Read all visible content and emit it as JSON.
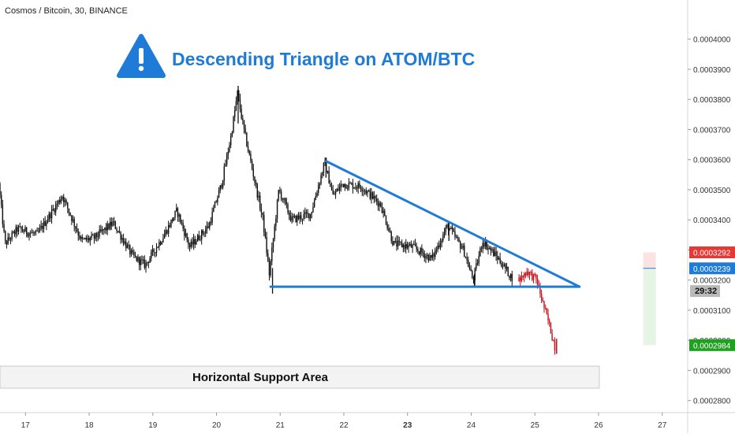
{
  "header": {
    "symbol_title": "Cosmos / Bitcoin, 30, BINANCE"
  },
  "chart_title": "Descending Triangle on ATOM/BTC",
  "support_label": "Horizontal Support Area",
  "countdown": "29:32",
  "colors": {
    "accent": "#1e7bd7",
    "candle": "#111111",
    "projection": "#c0131b",
    "stop": "#e53935",
    "target": "#20a020",
    "entry": "#1e7bd7"
  },
  "icons": {
    "title_icon": "warning-icon"
  },
  "chart_data": {
    "type": "candlestick",
    "title": "Descending Triangle on ATOM/BTC",
    "x_ticks": [
      "17",
      "18",
      "19",
      "20",
      "21",
      "22",
      "23",
      "24",
      "25",
      "26",
      "27"
    ],
    "x_range_days": [
      16.6,
      27.4
    ],
    "y_ticks": [
      "0.0002800",
      "0.0002900",
      "0.0003000",
      "0.0003100",
      "0.0003200",
      "0.0003300",
      "0.0003400",
      "0.0003500",
      "0.0003600",
      "0.0003700",
      "0.0003800",
      "0.0003900",
      "0.0004000"
    ],
    "ylim": [
      0.000276,
      0.000413
    ],
    "grid": false,
    "price_labels": [
      {
        "name": "stop",
        "value": 0.0003292,
        "text": "0.0003292"
      },
      {
        "name": "entry",
        "value": 0.0003239,
        "text": "0.0003239"
      },
      {
        "name": "target",
        "value": 0.0002984,
        "text": "0.0002984"
      }
    ],
    "key_points": [
      {
        "day": 16.6,
        "price": 0.000352
      },
      {
        "day": 16.7,
        "price": 0.000332
      },
      {
        "day": 16.9,
        "price": 0.000337
      },
      {
        "day": 17.2,
        "price": 0.000335
      },
      {
        "day": 17.6,
        "price": 0.000348
      },
      {
        "day": 17.9,
        "price": 0.000333
      },
      {
        "day": 18.1,
        "price": 0.000334
      },
      {
        "day": 18.4,
        "price": 0.000339
      },
      {
        "day": 18.7,
        "price": 0.000328
      },
      {
        "day": 18.9,
        "price": 0.000325
      },
      {
        "day": 19.2,
        "price": 0.000335
      },
      {
        "day": 19.4,
        "price": 0.000343
      },
      {
        "day": 19.6,
        "price": 0.000331
      },
      {
        "day": 19.9,
        "price": 0.000338
      },
      {
        "day": 20.1,
        "price": 0.000352
      },
      {
        "day": 20.25,
        "price": 0.000368
      },
      {
        "day": 20.35,
        "price": 0.000382
      },
      {
        "day": 20.45,
        "price": 0.00037
      },
      {
        "day": 20.6,
        "price": 0.000355
      },
      {
        "day": 20.75,
        "price": 0.00034
      },
      {
        "day": 20.85,
        "price": 0.000322
      },
      {
        "day": 21.0,
        "price": 0.00035
      },
      {
        "day": 21.2,
        "price": 0.00034
      },
      {
        "day": 21.5,
        "price": 0.000342
      },
      {
        "day": 21.72,
        "price": 0.000359
      },
      {
        "day": 21.85,
        "price": 0.000348
      },
      {
        "day": 22.0,
        "price": 0.000352
      },
      {
        "day": 22.3,
        "price": 0.000351
      },
      {
        "day": 22.6,
        "price": 0.000345
      },
      {
        "day": 22.8,
        "price": 0.000332
      },
      {
        "day": 23.1,
        "price": 0.000331
      },
      {
        "day": 23.4,
        "price": 0.000327
      },
      {
        "day": 23.65,
        "price": 0.000338
      },
      {
        "day": 23.9,
        "price": 0.00033
      },
      {
        "day": 24.05,
        "price": 0.00032
      },
      {
        "day": 24.2,
        "price": 0.000333
      },
      {
        "day": 24.45,
        "price": 0.000327
      },
      {
        "day": 24.65,
        "price": 0.000321
      }
    ],
    "projection_points": [
      {
        "day": 24.75,
        "price": 0.0003195
      },
      {
        "day": 24.9,
        "price": 0.000323
      },
      {
        "day": 25.05,
        "price": 0.00032
      },
      {
        "day": 25.15,
        "price": 0.000312
      },
      {
        "day": 25.25,
        "price": 0.000305
      },
      {
        "day": 25.33,
        "price": 0.000298
      }
    ],
    "annotations": {
      "descending_trendline": [
        {
          "day": 21.72,
          "price": 0.0003595
        },
        {
          "day": 25.7,
          "price": 0.0003178
        }
      ],
      "support_line": [
        {
          "day": 20.85,
          "price": 0.0003178
        },
        {
          "day": 25.7,
          "price": 0.0003178
        }
      ],
      "countdown_price": 0.0003178,
      "position_band": {
        "day_from": 26.7,
        "day_to": 26.9
      }
    }
  }
}
